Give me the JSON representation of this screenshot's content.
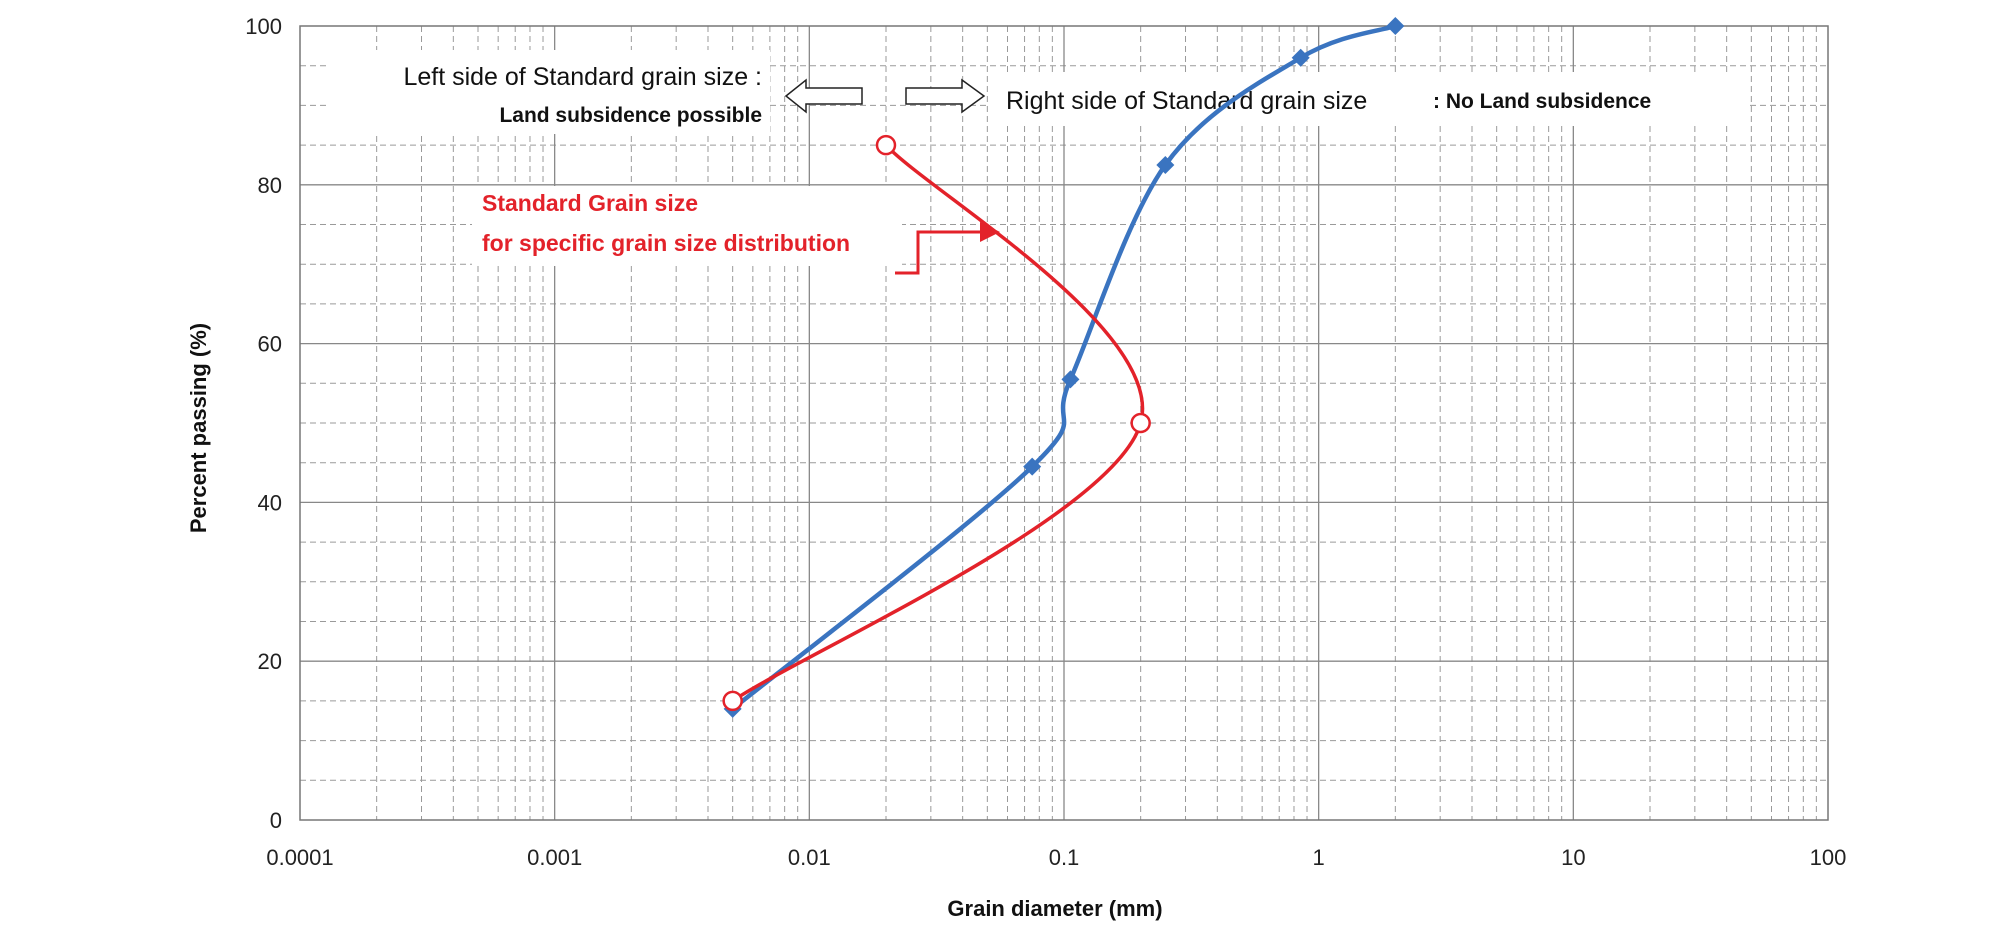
{
  "chart_data": {
    "type": "line",
    "title": "",
    "xlabel": "Grain diameter (mm)",
    "ylabel": "Percent passing (%)",
    "x_scale": "log",
    "xlim": [
      0.0001,
      100
    ],
    "ylim": [
      0,
      100
    ],
    "x_ticks": [
      "0.0001",
      "0.001",
      "0.01",
      "0.1",
      "1",
      "10",
      "100"
    ],
    "y_ticks": [
      "0",
      "20",
      "40",
      "60",
      "80",
      "100"
    ],
    "grid": true,
    "legend": "none",
    "series": [
      {
        "color": "#3a74c0",
        "marker": "diamond",
        "points": [
          {
            "x": 0.005,
            "y": 14
          },
          {
            "x": 0.075,
            "y": 44.5
          },
          {
            "x": 0.106,
            "y": 55.5
          },
          {
            "x": 0.25,
            "y": 82.5
          },
          {
            "x": 0.85,
            "y": 96
          },
          {
            "x": 2.0,
            "y": 100
          }
        ]
      },
      {
        "color": "#e3222a",
        "marker": "open-circle",
        "points": [
          {
            "x": 0.005,
            "y": 15
          },
          {
            "x": 0.2,
            "y": 50
          },
          {
            "x": 0.02,
            "y": 85
          }
        ]
      }
    ],
    "annotations": {
      "left_line1": "Left side of Standard grain size :",
      "left_line2": "Land subsidence possible",
      "right_line1": "Right side of Standard grain size",
      "right_line2": ": No Land subsidence",
      "red_line1": "Standard Grain size",
      "red_line2": "for specific grain size distribution"
    }
  }
}
